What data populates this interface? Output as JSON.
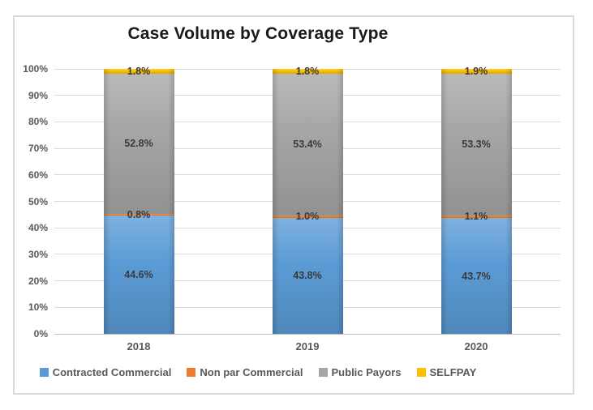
{
  "chart_data": {
    "type": "bar",
    "stacked": true,
    "title": "Case Volume by Coverage Type",
    "categories": [
      "2018",
      "2019",
      "2020"
    ],
    "series": [
      {
        "name": "Contracted Commercial",
        "color": "#5B9BD5",
        "values": [
          44.6,
          43.8,
          43.7
        ]
      },
      {
        "name": "Non par Commercial",
        "color": "#ED7D31",
        "values": [
          0.8,
          1.0,
          1.1
        ]
      },
      {
        "name": "Public Payors",
        "color": "#A6A6A6",
        "values": [
          52.8,
          53.4,
          53.3
        ]
      },
      {
        "name": "SELFPAY",
        "color": "#FFC000",
        "values": [
          1.8,
          1.8,
          1.9
        ]
      }
    ],
    "data_label_format": "0.0%",
    "ylim": [
      0,
      100
    ],
    "y_ticks": [
      "0%",
      "10%",
      "20%",
      "30%",
      "40%",
      "50%",
      "60%",
      "70%",
      "80%",
      "90%",
      "100%"
    ],
    "grid": true,
    "legend_position": "bottom"
  },
  "colors": {
    "gridline": "#D9D9D9",
    "axis_line": "#BFBFBF",
    "tick_text": "#595959",
    "data_label_text": "#3A3A3A",
    "title_text": "#1A1A1A",
    "frame_border": "#D9D9D9"
  }
}
